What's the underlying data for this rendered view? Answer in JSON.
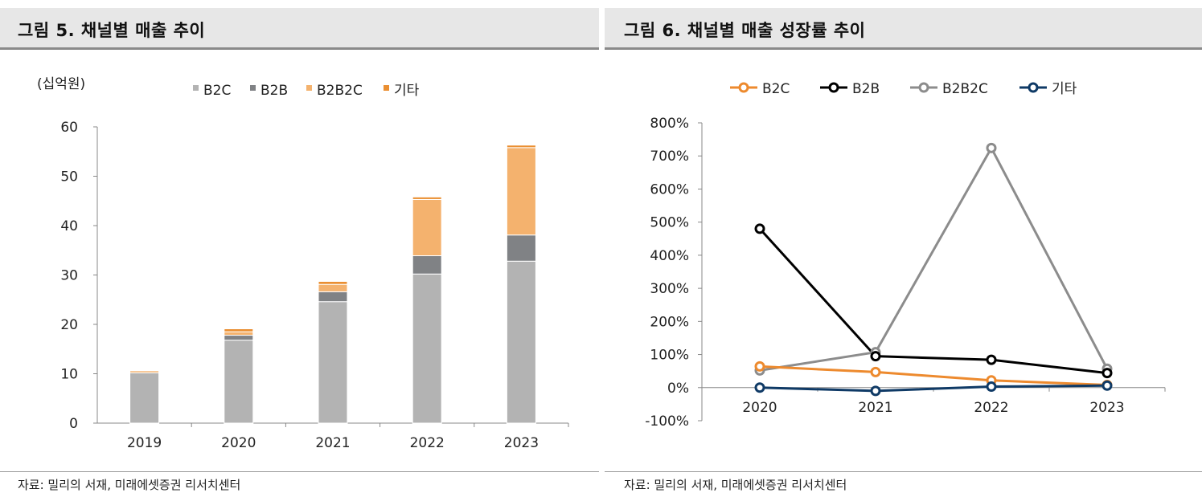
{
  "left_panel": {
    "title": "그림 5. 채널별 매출 추이",
    "source": "자료: 밀리의 서재, 미래에셋증권 리서치센터"
  },
  "right_panel": {
    "title": "그림 6. 채널별 매출 성장률 추이",
    "source": "자료: 밀리의 서재, 미래에셋증권 리서치센터"
  },
  "chart_data": [
    {
      "type": "bar",
      "stacked": true,
      "title": "그림 5. 채널별 매출 추이",
      "unit_label": "(십억원)",
      "categories": [
        "2019",
        "2020",
        "2021",
        "2022",
        "2023"
      ],
      "ylim": [
        0,
        60
      ],
      "yticks": [
        "0",
        "10",
        "20",
        "30",
        "40",
        "50",
        "60"
      ],
      "legend_position": "top",
      "series": [
        {
          "name": "B2C",
          "color": "#b3b3b3",
          "values": [
            10.2,
            16.8,
            24.6,
            30.2,
            32.8
          ]
        },
        {
          "name": "B2B",
          "color": "#808285",
          "values": [
            0.0,
            1.0,
            2.0,
            3.7,
            5.3
          ]
        },
        {
          "name": "B2B2C",
          "color": "#f4b26e",
          "values": [
            0.4,
            0.7,
            1.5,
            11.4,
            17.7
          ]
        },
        {
          "name": "기타",
          "color": "#ea8f32",
          "values": [
            0.0,
            0.6,
            0.6,
            0.5,
            0.5
          ]
        }
      ]
    },
    {
      "type": "line",
      "title": "그림 6. 채널별 매출 성장률 추이",
      "categories": [
        "2020",
        "2021",
        "2022",
        "2023"
      ],
      "ylim": [
        -100,
        800
      ],
      "yticks": [
        "800%",
        "700%",
        "600%",
        "500%",
        "400%",
        "300%",
        "200%",
        "100%",
        "0%",
        "-100%"
      ],
      "legend_position": "top",
      "series": [
        {
          "name": "B2C",
          "color": "#ed8a2e",
          "values": [
            64,
            47,
            22,
            8
          ]
        },
        {
          "name": "B2B",
          "color": "#000000",
          "values": [
            480,
            95,
            84,
            44
          ]
        },
        {
          "name": "B2B2C",
          "color": "#8c8c8c",
          "values": [
            52,
            107,
            724,
            57
          ]
        },
        {
          "name": "기타",
          "color": "#0f3a66",
          "values": [
            0,
            -10,
            3,
            6
          ]
        }
      ]
    }
  ]
}
